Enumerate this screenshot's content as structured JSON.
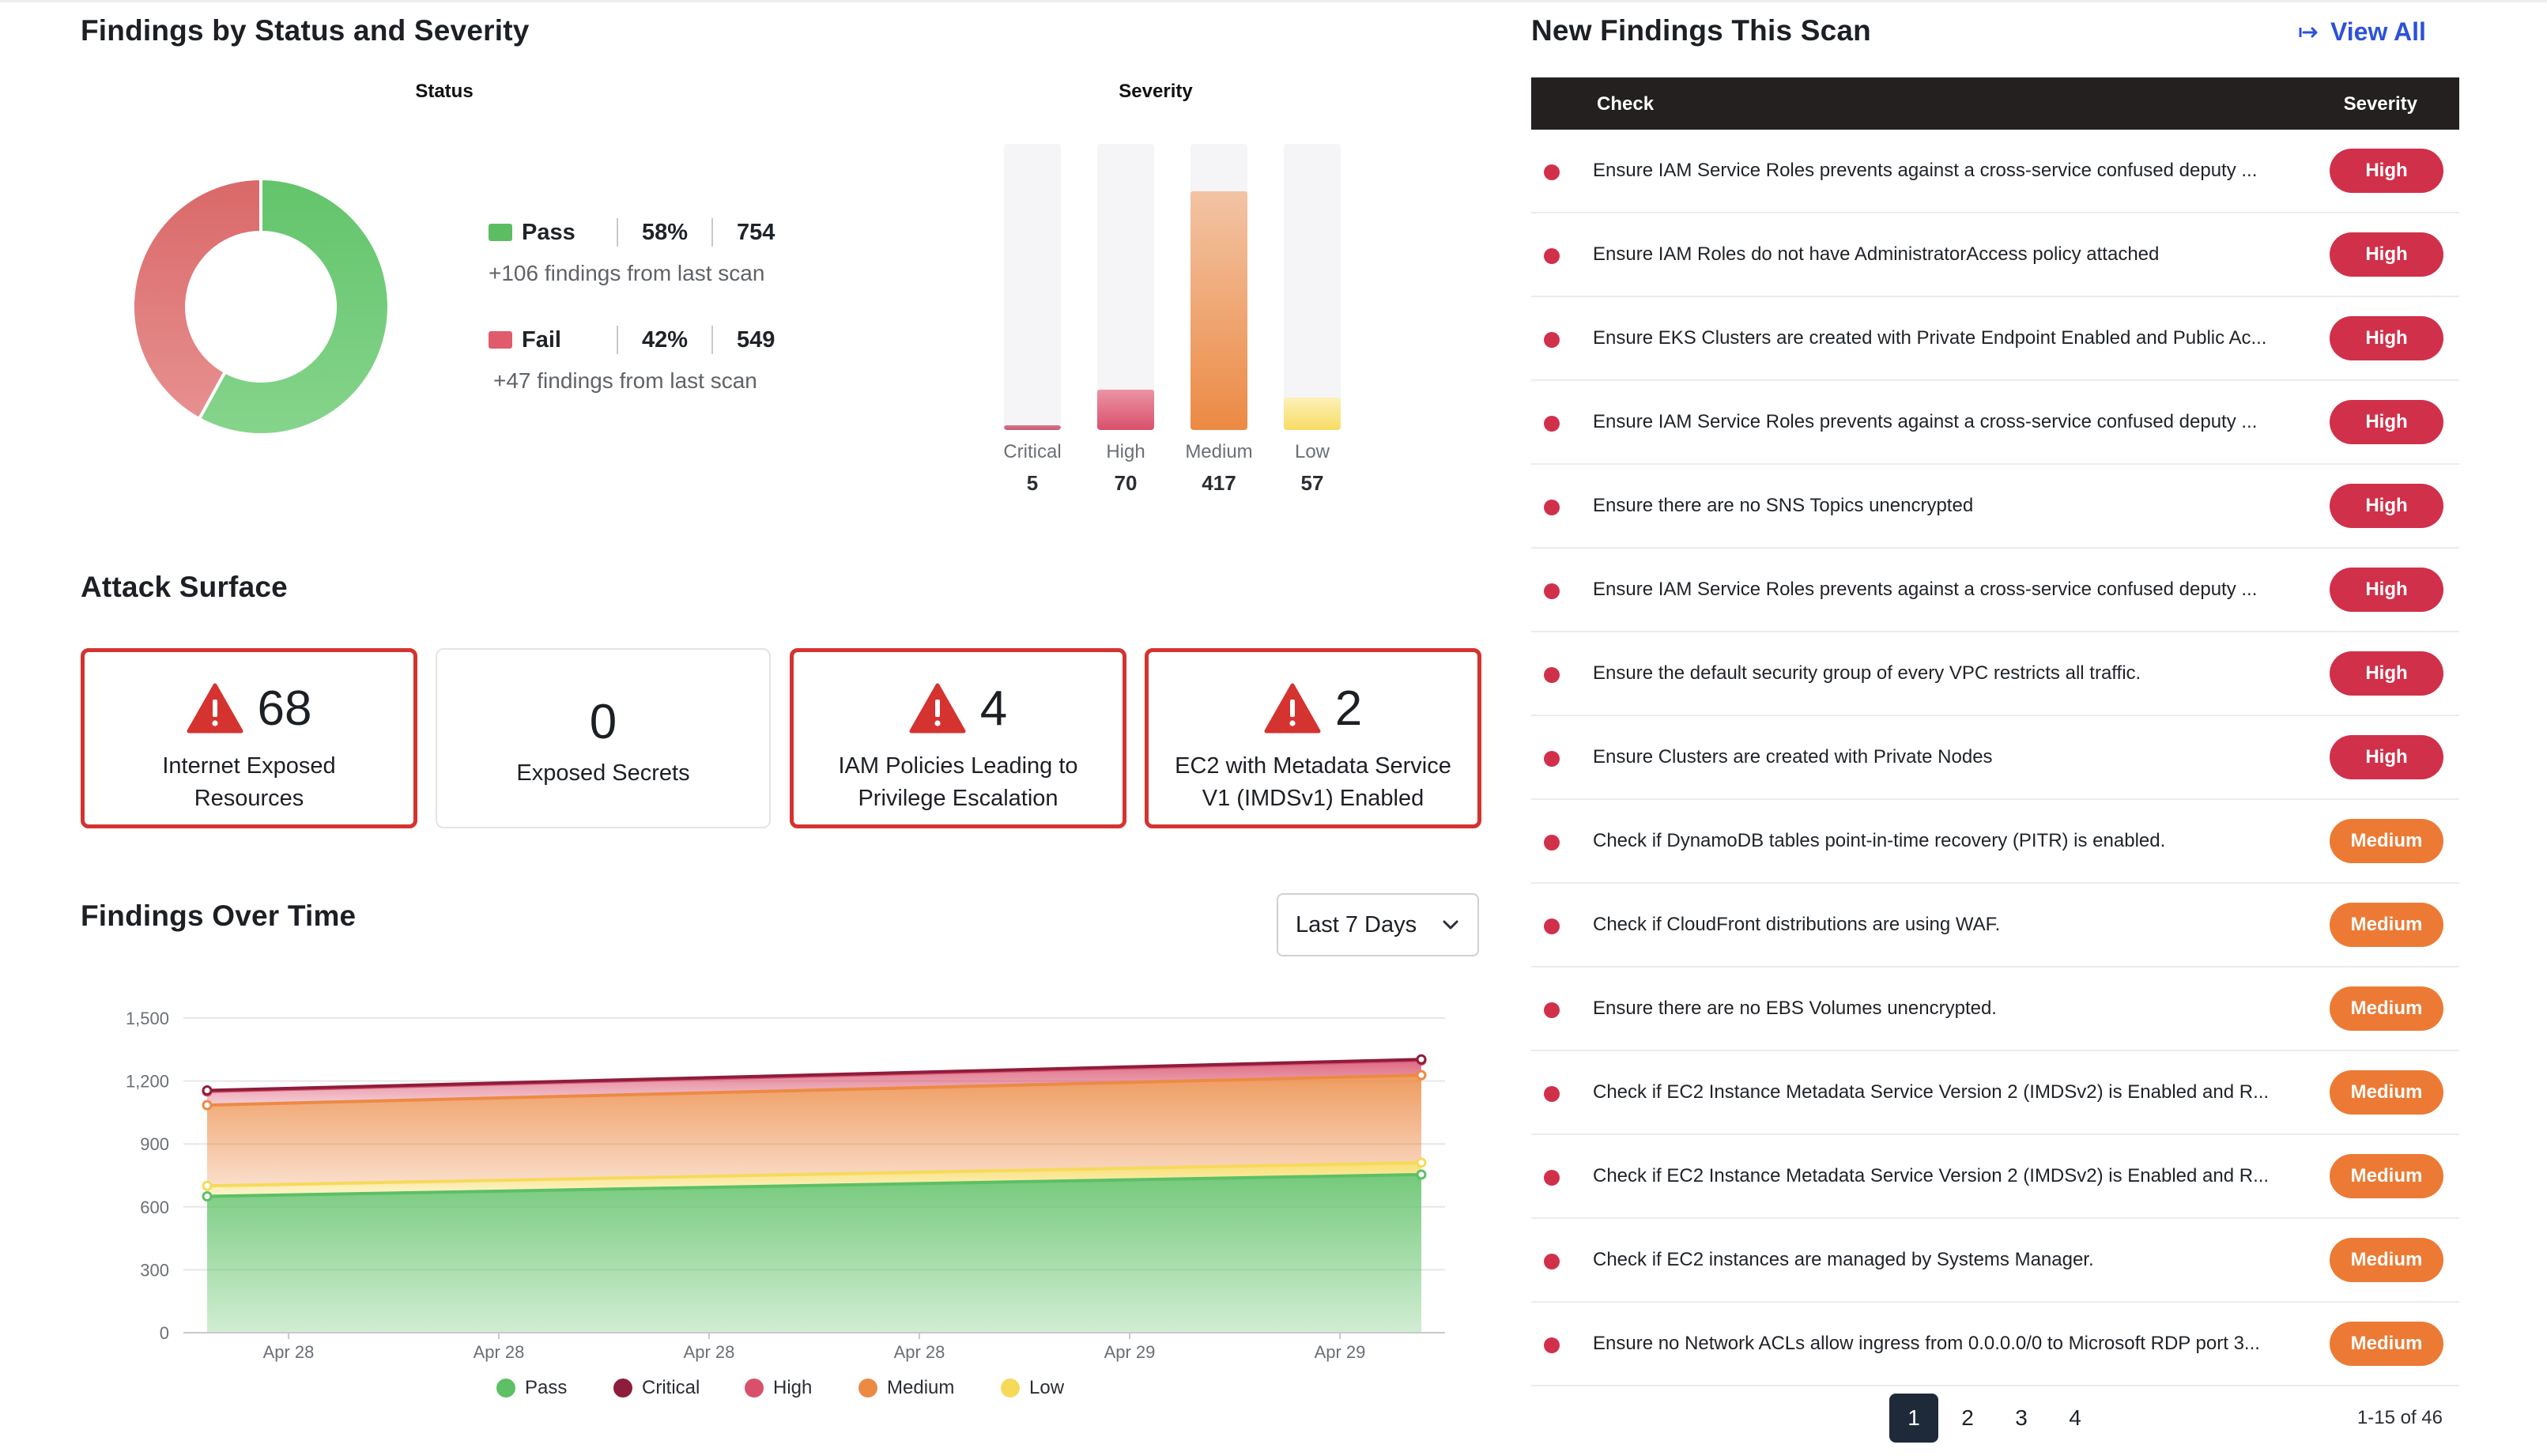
{
  "status_section": {
    "title": "Findings by Status and Severity",
    "status_label": "Status",
    "severity_label": "Severity",
    "pass": {
      "label": "Pass",
      "percent": "58%",
      "count": "754",
      "delta": "+106 findings from last scan",
      "color": "#6cc873",
      "fraction": 0.58
    },
    "fail": {
      "label": "Fail",
      "percent": "42%",
      "count": "549",
      "delta": "+47 findings from last scan",
      "color": "#e06f73",
      "fraction": 0.42
    }
  },
  "severity": [
    {
      "label": "Critical",
      "value": "5",
      "n": 5,
      "color_top": "#d5788c",
      "color_bottom": "#c95874"
    },
    {
      "label": "High",
      "value": "70",
      "n": 70,
      "color_top": "#ec93a4",
      "color_bottom": "#d9506c"
    },
    {
      "label": "Medium",
      "value": "417",
      "n": 417,
      "color_top": "#f2c4a4",
      "color_bottom": "#ec8a44"
    },
    {
      "label": "Low",
      "value": "57",
      "n": 57,
      "color_top": "#fdf1b8",
      "color_bottom": "#f7dc64"
    }
  ],
  "attack_surface": {
    "title": "Attack Surface",
    "cards": [
      {
        "value": "68",
        "label_line1": "Internet Exposed",
        "label_line2": "Resources",
        "alert": true
      },
      {
        "value": "0",
        "label_line1": "Exposed Secrets",
        "label_line2": "",
        "alert": false
      },
      {
        "value": "4",
        "label_line1": "IAM Policies Leading to",
        "label_line2": "Privilege Escalation",
        "alert": true
      },
      {
        "value": "2",
        "label_line1": "EC2 with Metadata Service",
        "label_line2": "V1 (IMDSv1) Enabled",
        "alert": true
      }
    ]
  },
  "findings_over_time": {
    "title": "Findings Over Time",
    "range_select": "Last 7 Days"
  },
  "chart_data": {
    "type": "area",
    "title": "",
    "x": [
      "Apr 28",
      "Apr 28",
      "Apr 28",
      "Apr 28",
      "Apr 29",
      "Apr 29"
    ],
    "ylim": [
      0,
      1500
    ],
    "yticks": [
      "0",
      "300",
      "600",
      "900",
      "1,200",
      "1,500"
    ],
    "stacked": true,
    "legend_position": "bottom",
    "series": [
      {
        "name": "Pass",
        "color": "#5cc064",
        "start": 650,
        "end": 754
      },
      {
        "name": "Low",
        "color": "#f7d95a",
        "start": 700,
        "end": 811
      },
      {
        "name": "Medium",
        "color": "#ec8a44",
        "start": 1085,
        "end": 1228
      },
      {
        "name": "High",
        "color": "#d9506c",
        "start": 1150,
        "end": 1298
      },
      {
        "name": "Critical",
        "color": "#8e1d3c",
        "start": 1155,
        "end": 1303
      }
    ],
    "legend": [
      {
        "name": "Pass",
        "color": "#5cc064"
      },
      {
        "name": "Critical",
        "color": "#8e1d3c"
      },
      {
        "name": "High",
        "color": "#d9506c"
      },
      {
        "name": "Medium",
        "color": "#ec8a44"
      },
      {
        "name": "Low",
        "color": "#f7d95a"
      }
    ]
  },
  "new_findings": {
    "title": "New Findings This Scan",
    "view_all": "View All",
    "col_check": "Check",
    "col_severity": "Severity",
    "rows": [
      {
        "check": "Ensure IAM Service Roles prevents against a cross-service confused deputy ...",
        "severity": "High"
      },
      {
        "check": "Ensure IAM Roles do not have AdministratorAccess policy attached",
        "severity": "High"
      },
      {
        "check": "Ensure EKS Clusters are created with Private Endpoint Enabled and Public Ac...",
        "severity": "High"
      },
      {
        "check": "Ensure IAM Service Roles prevents against a cross-service confused deputy ...",
        "severity": "High"
      },
      {
        "check": "Ensure there are no SNS Topics unencrypted",
        "severity": "High"
      },
      {
        "check": "Ensure IAM Service Roles prevents against a cross-service confused deputy ...",
        "severity": "High"
      },
      {
        "check": "Ensure the default security group of every VPC restricts all traffic.",
        "severity": "High"
      },
      {
        "check": "Ensure Clusters are created with Private Nodes",
        "severity": "High"
      },
      {
        "check": "Check if DynamoDB tables point-in-time recovery (PITR) is enabled.",
        "severity": "Medium"
      },
      {
        "check": "Check if CloudFront distributions are using WAF.",
        "severity": "Medium"
      },
      {
        "check": "Ensure there are no EBS Volumes unencrypted.",
        "severity": "Medium"
      },
      {
        "check": "Check if EC2 Instance Metadata Service Version 2 (IMDSv2) is Enabled and R...",
        "severity": "Medium"
      },
      {
        "check": "Check if EC2 Instance Metadata Service Version 2 (IMDSv2) is Enabled and R...",
        "severity": "Medium"
      },
      {
        "check": "Check if EC2 instances are managed by Systems Manager.",
        "severity": "Medium"
      },
      {
        "check": "Ensure no Network ACLs allow ingress from 0.0.0.0/0 to Microsoft RDP port 3...",
        "severity": "Medium"
      }
    ],
    "severity_colors": {
      "High": "#d1304a",
      "Medium": "#ec7a34"
    },
    "pagination": {
      "pages": [
        "1",
        "2",
        "3",
        "4"
      ],
      "active": "1",
      "range_text": "1-15 of 46"
    }
  }
}
